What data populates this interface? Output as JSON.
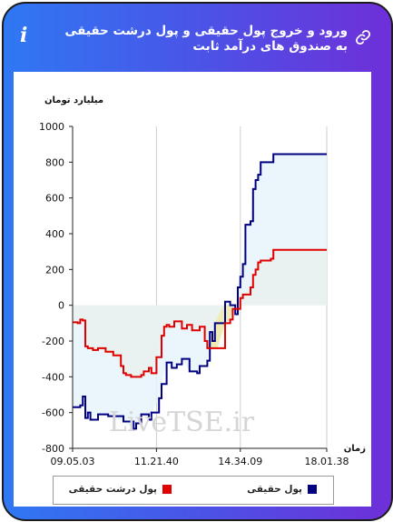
{
  "header": {
    "title": "ورود و خروج پول حقیقی و پول درشت حقیقی به صندوق های درآمد ثابت",
    "info_icon": "info-icon",
    "link_icon": "link-icon",
    "gradient_colors": [
      "#2f78f3",
      "#6f2fd9"
    ]
  },
  "chart_data": {
    "type": "line",
    "title": "",
    "ylabel": "میلیارد تومان",
    "xlabel": "زمان",
    "ylim": [
      -800,
      1000
    ],
    "yticks": [
      1000,
      800,
      600,
      400,
      200,
      0,
      -200,
      -400,
      -600,
      -800
    ],
    "xlim": [
      0,
      100
    ],
    "xticks": [
      {
        "x": 0,
        "label": "09.05.03"
      },
      {
        "x": 33,
        "label": "11.21.40"
      },
      {
        "x": 66,
        "label": "14.34.09"
      },
      {
        "x": 100,
        "label": "18.01.38"
      }
    ],
    "grid": {
      "vertical": true,
      "horizontal": false
    },
    "legend_position": "bottom",
    "watermark": "LiveTSE.ir",
    "series": [
      {
        "name": "پول حقیقی",
        "color": "#000080",
        "fill_color": "#e8f3fb",
        "x": [
          0,
          3,
          4,
          5,
          6,
          7,
          10,
          14,
          20,
          24,
          25,
          27,
          30,
          31,
          34,
          35,
          37,
          39,
          41,
          43,
          46,
          49,
          50,
          53,
          54,
          55,
          56,
          60,
          62,
          64,
          65,
          66,
          67,
          68,
          70,
          71,
          72,
          73,
          74,
          78,
          79,
          100
        ],
        "y": [
          -570,
          -560,
          -510,
          -630,
          -600,
          -640,
          -610,
          -620,
          -650,
          -690,
          -660,
          -610,
          -640,
          -600,
          -520,
          -440,
          -320,
          -350,
          -330,
          -300,
          -370,
          -380,
          -340,
          -310,
          -150,
          -200,
          -100,
          20,
          0,
          -50,
          100,
          160,
          230,
          450,
          470,
          650,
          700,
          730,
          800,
          800,
          845,
          845
        ]
      },
      {
        "name": "پول درشت حقیقی",
        "color": "#e00000",
        "fill_color": "#efebb4",
        "x": [
          0,
          2,
          3,
          4,
          5,
          6,
          8,
          10,
          13,
          16,
          19,
          20,
          21,
          23,
          27,
          28,
          30,
          31,
          33,
          35,
          36,
          37,
          38,
          40,
          43,
          45,
          47,
          50,
          52,
          53,
          54,
          57,
          60,
          62,
          63,
          66,
          67,
          70,
          71,
          72,
          73,
          74,
          78,
          79,
          100
        ],
        "y": [
          -95,
          -100,
          -80,
          -85,
          -230,
          -240,
          -250,
          -240,
          -260,
          -280,
          -340,
          -380,
          -390,
          -400,
          -390,
          -370,
          -350,
          -380,
          -290,
          -170,
          -120,
          -110,
          -120,
          -90,
          -130,
          -110,
          -140,
          -120,
          -200,
          -240,
          -240,
          -240,
          -100,
          -80,
          -20,
          40,
          60,
          100,
          170,
          200,
          240,
          250,
          260,
          310,
          310
        ]
      }
    ]
  }
}
